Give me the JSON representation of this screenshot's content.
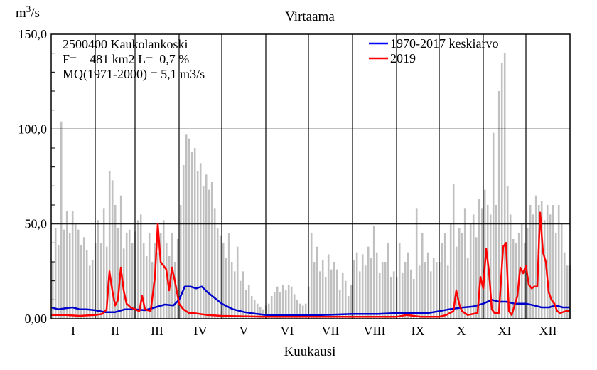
{
  "chart_data": {
    "type": "line",
    "title": "Virtaama",
    "ylabel_base": "m",
    "ylabel_exp": "3",
    "ylabel_tail": "/s",
    "xlabel": "Kuukausi",
    "ylim": [
      0,
      150
    ],
    "xlim": [
      0,
      365
    ],
    "y_ticks": [
      {
        "value": 0,
        "label": "0,00"
      },
      {
        "value": 50,
        "label": "50,0"
      },
      {
        "value": 100,
        "label": "100,0"
      },
      {
        "value": 150,
        "label": "150,0"
      }
    ],
    "months": [
      "I",
      "II",
      "III",
      "IV",
      "V",
      "VI",
      "VII",
      "VIII",
      "IX",
      "X",
      "XI",
      "XII"
    ],
    "month_starts": [
      0,
      31,
      59,
      90,
      120,
      151,
      181,
      212,
      243,
      273,
      304,
      334
    ],
    "info_lines": [
      "2500400 Kaukolankoski",
      "F=    481 km2 L=  0,7 %",
      "MQ(1971-2000) = 5,1 m3/s"
    ],
    "legend": [
      {
        "label": "1970-2017 keskiarvo",
        "color": "#0000ff"
      },
      {
        "label": "2019",
        "color": "#ff0000"
      }
    ],
    "series": [
      {
        "name": "1970-2017 keskiarvo",
        "color": "#0000cc",
        "points": [
          [
            0,
            6
          ],
          [
            5,
            5
          ],
          [
            10,
            5.5
          ],
          [
            15,
            6
          ],
          [
            20,
            5
          ],
          [
            25,
            5
          ],
          [
            31,
            4.5
          ],
          [
            38,
            3.5
          ],
          [
            45,
            3.5
          ],
          [
            52,
            5
          ],
          [
            59,
            5
          ],
          [
            66,
            4.5
          ],
          [
            73,
            6
          ],
          [
            80,
            7.5
          ],
          [
            86,
            7
          ],
          [
            90,
            10
          ],
          [
            94,
            17
          ],
          [
            98,
            17
          ],
          [
            102,
            16
          ],
          [
            106,
            17
          ],
          [
            110,
            14
          ],
          [
            115,
            11
          ],
          [
            120,
            8
          ],
          [
            128,
            5
          ],
          [
            136,
            3.5
          ],
          [
            145,
            2.5
          ],
          [
            151,
            2
          ],
          [
            160,
            1.8
          ],
          [
            170,
            1.8
          ],
          [
            181,
            2
          ],
          [
            190,
            2
          ],
          [
            200,
            2.2
          ],
          [
            212,
            2.5
          ],
          [
            220,
            2.5
          ],
          [
            230,
            2.5
          ],
          [
            243,
            3
          ],
          [
            255,
            3
          ],
          [
            265,
            3
          ],
          [
            273,
            4
          ],
          [
            280,
            5
          ],
          [
            290,
            6
          ],
          [
            297,
            6.5
          ],
          [
            304,
            8
          ],
          [
            310,
            10
          ],
          [
            315,
            9
          ],
          [
            320,
            9
          ],
          [
            326,
            8
          ],
          [
            334,
            8
          ],
          [
            340,
            7
          ],
          [
            345,
            6
          ],
          [
            350,
            6
          ],
          [
            355,
            7
          ],
          [
            360,
            6
          ],
          [
            365,
            6
          ]
        ]
      },
      {
        "name": "2019",
        "color": "#ff0000",
        "points": [
          [
            0,
            2
          ],
          [
            10,
            2
          ],
          [
            20,
            1.5
          ],
          [
            31,
            2
          ],
          [
            36,
            2.5
          ],
          [
            39,
            5
          ],
          [
            41,
            25
          ],
          [
            43,
            15
          ],
          [
            45,
            7
          ],
          [
            47,
            10
          ],
          [
            49,
            27
          ],
          [
            51,
            15
          ],
          [
            53,
            8
          ],
          [
            56,
            6
          ],
          [
            59,
            5
          ],
          [
            62,
            4
          ],
          [
            64,
            12
          ],
          [
            66,
            5
          ],
          [
            70,
            4
          ],
          [
            73,
            22
          ],
          [
            75,
            50
          ],
          [
            77,
            30
          ],
          [
            79,
            28
          ],
          [
            81,
            26
          ],
          [
            83,
            15
          ],
          [
            85,
            27
          ],
          [
            87,
            20
          ],
          [
            90,
            8
          ],
          [
            93,
            5
          ],
          [
            97,
            3
          ],
          [
            100,
            3
          ],
          [
            110,
            2
          ],
          [
            120,
            1.5
          ],
          [
            150,
            1
          ],
          [
            200,
            1
          ],
          [
            243,
            1
          ],
          [
            250,
            2
          ],
          [
            260,
            1
          ],
          [
            273,
            1
          ],
          [
            278,
            2
          ],
          [
            283,
            4
          ],
          [
            285,
            15
          ],
          [
            287,
            8
          ],
          [
            289,
            4
          ],
          [
            293,
            2
          ],
          [
            300,
            3
          ],
          [
            302,
            22
          ],
          [
            304,
            16
          ],
          [
            306,
            37
          ],
          [
            308,
            25
          ],
          [
            310,
            5
          ],
          [
            312,
            3
          ],
          [
            315,
            3
          ],
          [
            318,
            38
          ],
          [
            320,
            40
          ],
          [
            322,
            4
          ],
          [
            324,
            2
          ],
          [
            328,
            12
          ],
          [
            330,
            27
          ],
          [
            332,
            24
          ],
          [
            334,
            28
          ],
          [
            336,
            18
          ],
          [
            338,
            16
          ],
          [
            340,
            17
          ],
          [
            342,
            17
          ],
          [
            344,
            56
          ],
          [
            346,
            35
          ],
          [
            348,
            30
          ],
          [
            350,
            14
          ],
          [
            352,
            10
          ],
          [
            354,
            8
          ],
          [
            356,
            4
          ],
          [
            358,
            3
          ],
          [
            362,
            4
          ],
          [
            365,
            4
          ]
        ]
      }
    ],
    "daily_range_bars": [
      {
        "day": 1,
        "max": 30
      },
      {
        "day": 3,
        "max": 48
      },
      {
        "day": 5,
        "max": 39
      },
      {
        "day": 7,
        "max": 104
      },
      {
        "day": 9,
        "max": 47
      },
      {
        "day": 11,
        "max": 57
      },
      {
        "day": 13,
        "max": 45
      },
      {
        "day": 15,
        "max": 57
      },
      {
        "day": 17,
        "max": 50
      },
      {
        "day": 19,
        "max": 47
      },
      {
        "day": 21,
        "max": 39
      },
      {
        "day": 23,
        "max": 43
      },
      {
        "day": 25,
        "max": 36
      },
      {
        "day": 27,
        "max": 28
      },
      {
        "day": 29,
        "max": 31
      },
      {
        "day": 31,
        "max": 40
      },
      {
        "day": 33,
        "max": 52
      },
      {
        "day": 35,
        "max": 40
      },
      {
        "day": 37,
        "max": 58
      },
      {
        "day": 39,
        "max": 38
      },
      {
        "day": 41,
        "max": 78
      },
      {
        "day": 43,
        "max": 73
      },
      {
        "day": 45,
        "max": 60
      },
      {
        "day": 47,
        "max": 48
      },
      {
        "day": 49,
        "max": 65
      },
      {
        "day": 51,
        "max": 37
      },
      {
        "day": 53,
        "max": 45
      },
      {
        "day": 55,
        "max": 47
      },
      {
        "day": 57,
        "max": 40
      },
      {
        "day": 59,
        "max": 46
      },
      {
        "day": 61,
        "max": 52
      },
      {
        "day": 63,
        "max": 55
      },
      {
        "day": 65,
        "max": 40
      },
      {
        "day": 67,
        "max": 33
      },
      {
        "day": 69,
        "max": 45
      },
      {
        "day": 71,
        "max": 30
      },
      {
        "day": 73,
        "max": 40
      },
      {
        "day": 75,
        "max": 35
      },
      {
        "day": 77,
        "max": 45
      },
      {
        "day": 79,
        "max": 52
      },
      {
        "day": 81,
        "max": 40
      },
      {
        "day": 83,
        "max": 33
      },
      {
        "day": 85,
        "max": 45
      },
      {
        "day": 87,
        "max": 30
      },
      {
        "day": 89,
        "max": 42
      },
      {
        "day": 91,
        "max": 60
      },
      {
        "day": 93,
        "max": 81
      },
      {
        "day": 95,
        "max": 97
      },
      {
        "day": 97,
        "max": 95
      },
      {
        "day": 99,
        "max": 88
      },
      {
        "day": 101,
        "max": 90
      },
      {
        "day": 103,
        "max": 78
      },
      {
        "day": 105,
        "max": 82
      },
      {
        "day": 107,
        "max": 70
      },
      {
        "day": 109,
        "max": 76
      },
      {
        "day": 111,
        "max": 68
      },
      {
        "day": 113,
        "max": 72
      },
      {
        "day": 115,
        "max": 58
      },
      {
        "day": 117,
        "max": 48
      },
      {
        "day": 119,
        "max": 44
      },
      {
        "day": 121,
        "max": 40
      },
      {
        "day": 123,
        "max": 32
      },
      {
        "day": 125,
        "max": 45
      },
      {
        "day": 127,
        "max": 30
      },
      {
        "day": 129,
        "max": 25
      },
      {
        "day": 131,
        "max": 38
      },
      {
        "day": 133,
        "max": 20
      },
      {
        "day": 135,
        "max": 25
      },
      {
        "day": 137,
        "max": 15
      },
      {
        "day": 139,
        "max": 18
      },
      {
        "day": 141,
        "max": 12
      },
      {
        "day": 143,
        "max": 10
      },
      {
        "day": 145,
        "max": 8
      },
      {
        "day": 147,
        "max": 6
      },
      {
        "day": 149,
        "max": 5
      },
      {
        "day": 151,
        "max": 7
      },
      {
        "day": 153,
        "max": 8
      },
      {
        "day": 155,
        "max": 12
      },
      {
        "day": 157,
        "max": 14
      },
      {
        "day": 159,
        "max": 17
      },
      {
        "day": 161,
        "max": 14
      },
      {
        "day": 163,
        "max": 18
      },
      {
        "day": 165,
        "max": 15
      },
      {
        "day": 167,
        "max": 18
      },
      {
        "day": 169,
        "max": 17
      },
      {
        "day": 171,
        "max": 13
      },
      {
        "day": 173,
        "max": 10
      },
      {
        "day": 175,
        "max": 8
      },
      {
        "day": 177,
        "max": 7
      },
      {
        "day": 179,
        "max": 8
      },
      {
        "day": 181,
        "max": 17
      },
      {
        "day": 183,
        "max": 45
      },
      {
        "day": 185,
        "max": 30
      },
      {
        "day": 187,
        "max": 38
      },
      {
        "day": 189,
        "max": 25
      },
      {
        "day": 191,
        "max": 31
      },
      {
        "day": 193,
        "max": 22
      },
      {
        "day": 195,
        "max": 34
      },
      {
        "day": 197,
        "max": 26
      },
      {
        "day": 199,
        "max": 30
      },
      {
        "day": 201,
        "max": 26
      },
      {
        "day": 203,
        "max": 15
      },
      {
        "day": 205,
        "max": 24
      },
      {
        "day": 207,
        "max": 20
      },
      {
        "day": 209,
        "max": 12
      },
      {
        "day": 211,
        "max": 18
      },
      {
        "day": 213,
        "max": 31
      },
      {
        "day": 215,
        "max": 35
      },
      {
        "day": 217,
        "max": 25
      },
      {
        "day": 219,
        "max": 34
      },
      {
        "day": 221,
        "max": 28
      },
      {
        "day": 223,
        "max": 38
      },
      {
        "day": 225,
        "max": 32
      },
      {
        "day": 227,
        "max": 49
      },
      {
        "day": 229,
        "max": 35
      },
      {
        "day": 231,
        "max": 24
      },
      {
        "day": 233,
        "max": 30
      },
      {
        "day": 235,
        "max": 30
      },
      {
        "day": 237,
        "max": 40
      },
      {
        "day": 239,
        "max": 22
      },
      {
        "day": 241,
        "max": 25
      },
      {
        "day": 243,
        "max": 22
      },
      {
        "day": 245,
        "max": 40
      },
      {
        "day": 247,
        "max": 24
      },
      {
        "day": 249,
        "max": 30
      },
      {
        "day": 251,
        "max": 35
      },
      {
        "day": 253,
        "max": 26
      },
      {
        "day": 255,
        "max": 21
      },
      {
        "day": 257,
        "max": 58
      },
      {
        "day": 259,
        "max": 28
      },
      {
        "day": 261,
        "max": 45
      },
      {
        "day": 263,
        "max": 30
      },
      {
        "day": 265,
        "max": 35
      },
      {
        "day": 267,
        "max": 25
      },
      {
        "day": 269,
        "max": 32
      },
      {
        "day": 271,
        "max": 30
      },
      {
        "day": 273,
        "max": 30
      },
      {
        "day": 275,
        "max": 40
      },
      {
        "day": 277,
        "max": 45
      },
      {
        "day": 279,
        "max": 28
      },
      {
        "day": 281,
        "max": 50
      },
      {
        "day": 283,
        "max": 71
      },
      {
        "day": 285,
        "max": 38
      },
      {
        "day": 287,
        "max": 48
      },
      {
        "day": 289,
        "max": 45
      },
      {
        "day": 291,
        "max": 58
      },
      {
        "day": 293,
        "max": 32
      },
      {
        "day": 295,
        "max": 50
      },
      {
        "day": 297,
        "max": 55
      },
      {
        "day": 299,
        "max": 43
      },
      {
        "day": 301,
        "max": 63
      },
      {
        "day": 303,
        "max": 58
      },
      {
        "day": 305,
        "max": 68
      },
      {
        "day": 307,
        "max": 60
      },
      {
        "day": 309,
        "max": 55
      },
      {
        "day": 311,
        "max": 98
      },
      {
        "day": 313,
        "max": 60
      },
      {
        "day": 315,
        "max": 120
      },
      {
        "day": 317,
        "max": 135
      },
      {
        "day": 319,
        "max": 140
      },
      {
        "day": 321,
        "max": 70
      },
      {
        "day": 323,
        "max": 55
      },
      {
        "day": 325,
        "max": 42
      },
      {
        "day": 327,
        "max": 40
      },
      {
        "day": 329,
        "max": 45
      },
      {
        "day": 331,
        "max": 50
      },
      {
        "day": 333,
        "max": 40
      },
      {
        "day": 335,
        "max": 48
      },
      {
        "day": 337,
        "max": 60
      },
      {
        "day": 339,
        "max": 55
      },
      {
        "day": 341,
        "max": 65
      },
      {
        "day": 343,
        "max": 60
      },
      {
        "day": 345,
        "max": 62
      },
      {
        "day": 347,
        "max": 52
      },
      {
        "day": 349,
        "max": 60
      },
      {
        "day": 351,
        "max": 55
      },
      {
        "day": 353,
        "max": 60
      },
      {
        "day": 355,
        "max": 45
      },
      {
        "day": 357,
        "max": 60
      },
      {
        "day": 359,
        "max": 50
      },
      {
        "day": 361,
        "max": 35
      },
      {
        "day": 363,
        "max": 28
      },
      {
        "day": 365,
        "max": 28
      }
    ]
  }
}
